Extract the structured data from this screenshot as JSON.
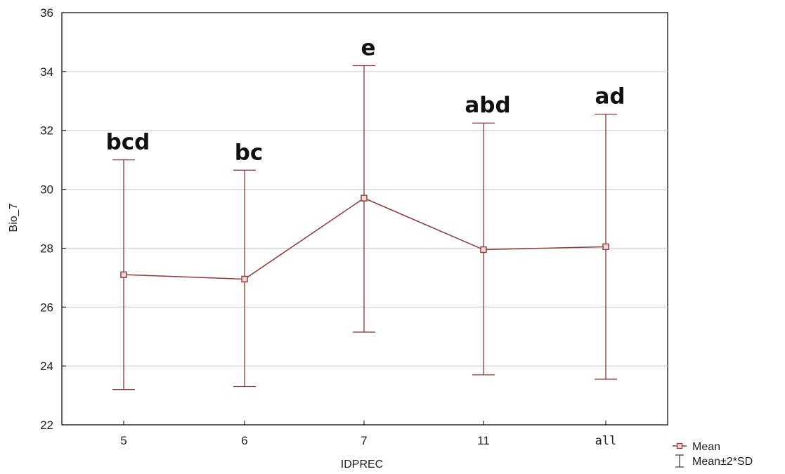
{
  "chart_data": {
    "type": "line",
    "categories": [
      "5",
      "6",
      "7",
      "11",
      "all"
    ],
    "series": [
      {
        "name": "Mean",
        "values": [
          27.1,
          26.95,
          29.7,
          27.95,
          28.05
        ]
      }
    ],
    "error_bars": {
      "name": "Mean±2*SD",
      "lower": [
        23.2,
        23.3,
        25.15,
        23.7,
        23.55
      ],
      "upper": [
        31.0,
        30.65,
        34.2,
        32.25,
        32.55
      ]
    },
    "group_letters": [
      "bcd",
      "bc",
      "e",
      "abd",
      "ad"
    ],
    "xlabel": "IDPREC",
    "ylabel": "Bio_7",
    "ylim": [
      22,
      36
    ],
    "yticks": [
      "22",
      "24",
      "26",
      "28",
      "30",
      "32",
      "34",
      "36"
    ],
    "grid": true,
    "legend": "bottom-right",
    "colors": {
      "series": "#8b3a3a",
      "grid": "#cccccc",
      "axis": "#000000"
    }
  }
}
